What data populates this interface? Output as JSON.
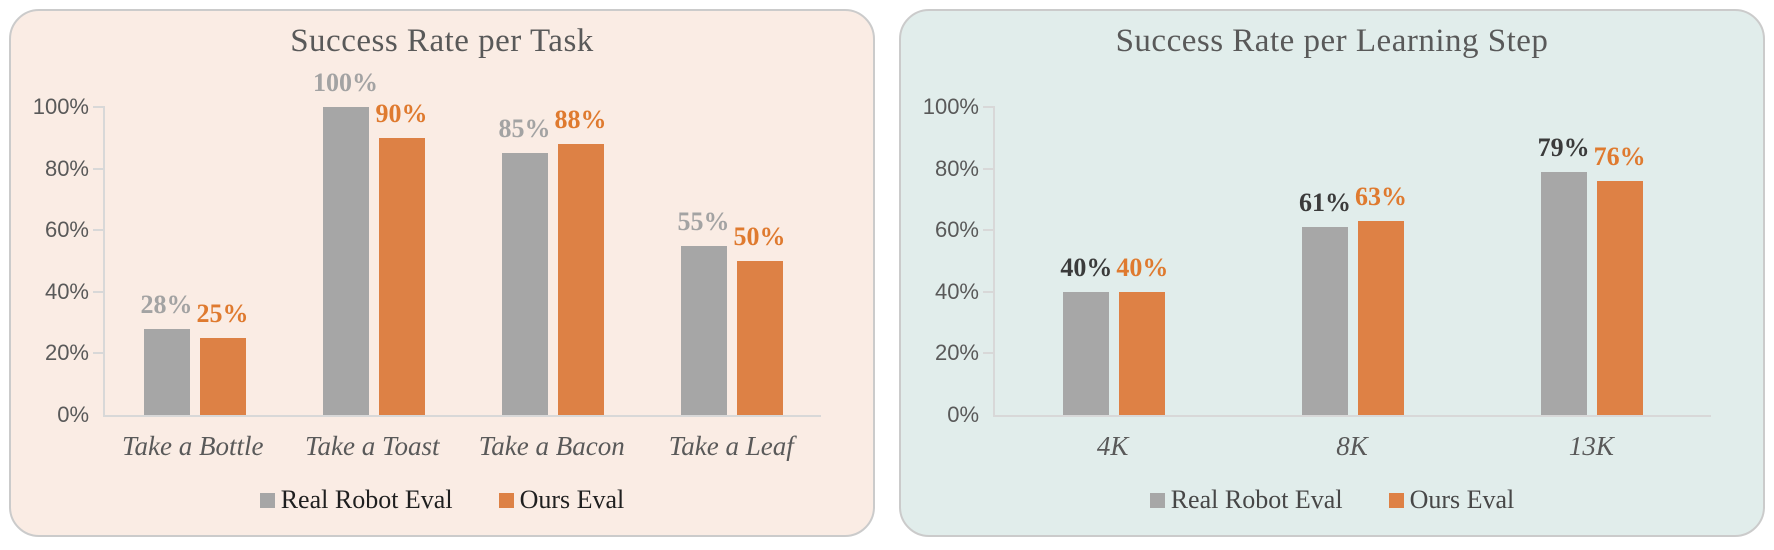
{
  "page": {
    "background": "#ffffff"
  },
  "chart_data": [
    {
      "type": "bar",
      "title": "Success Rate per Task",
      "categories": [
        "Take a Bottle",
        "Take a Toast",
        "Take a Bacon",
        "Take a Leaf"
      ],
      "series": [
        {
          "name": "Real Robot Eval",
          "values": [
            28,
            100,
            85,
            55
          ],
          "color": "#A6A6A6",
          "label_color": "#A3A3A3"
        },
        {
          "name": "Ours Eval",
          "values": [
            25,
            90,
            88,
            50
          ],
          "color": "#DD8145",
          "label_color": "#DF7A2F"
        }
      ],
      "value_suffix": "%",
      "ylabel_ticks": [
        "0%",
        "20%",
        "40%",
        "60%",
        "80%",
        "100%"
      ],
      "ylim": [
        0,
        100
      ],
      "grid": false,
      "legend_position": "bottom",
      "panel_bg": "#FAECE4",
      "axis_color": "#D8D8D8",
      "title_color": "#595959",
      "tick_label_color": "#595959",
      "xlabel_color": "#595959",
      "legend_text_color": "#1F1F1F"
    },
    {
      "type": "bar",
      "title": "Success Rate per Learning Step",
      "categories": [
        "4K",
        "8K",
        "13K"
      ],
      "series": [
        {
          "name": "Real Robot Eval",
          "values": [
            40,
            61,
            79
          ],
          "color": "#A7A7A7",
          "label_color": "#3B3B3B"
        },
        {
          "name": "Ours Eval",
          "values": [
            40,
            63,
            76
          ],
          "color": "#DE8145",
          "label_color": "#DF7A2F"
        }
      ],
      "value_suffix": "%",
      "ylabel_ticks": [
        "0%",
        "20%",
        "40%",
        "60%",
        "80%",
        "100%"
      ],
      "ylim": [
        0,
        100
      ],
      "grid": false,
      "legend_position": "bottom",
      "panel_bg": "#E1EDEB",
      "axis_color": "#D8D8D8",
      "title_color": "#595959",
      "tick_label_color": "#595959",
      "xlabel_color": "#595959",
      "legend_text_color": "#474747"
    }
  ]
}
